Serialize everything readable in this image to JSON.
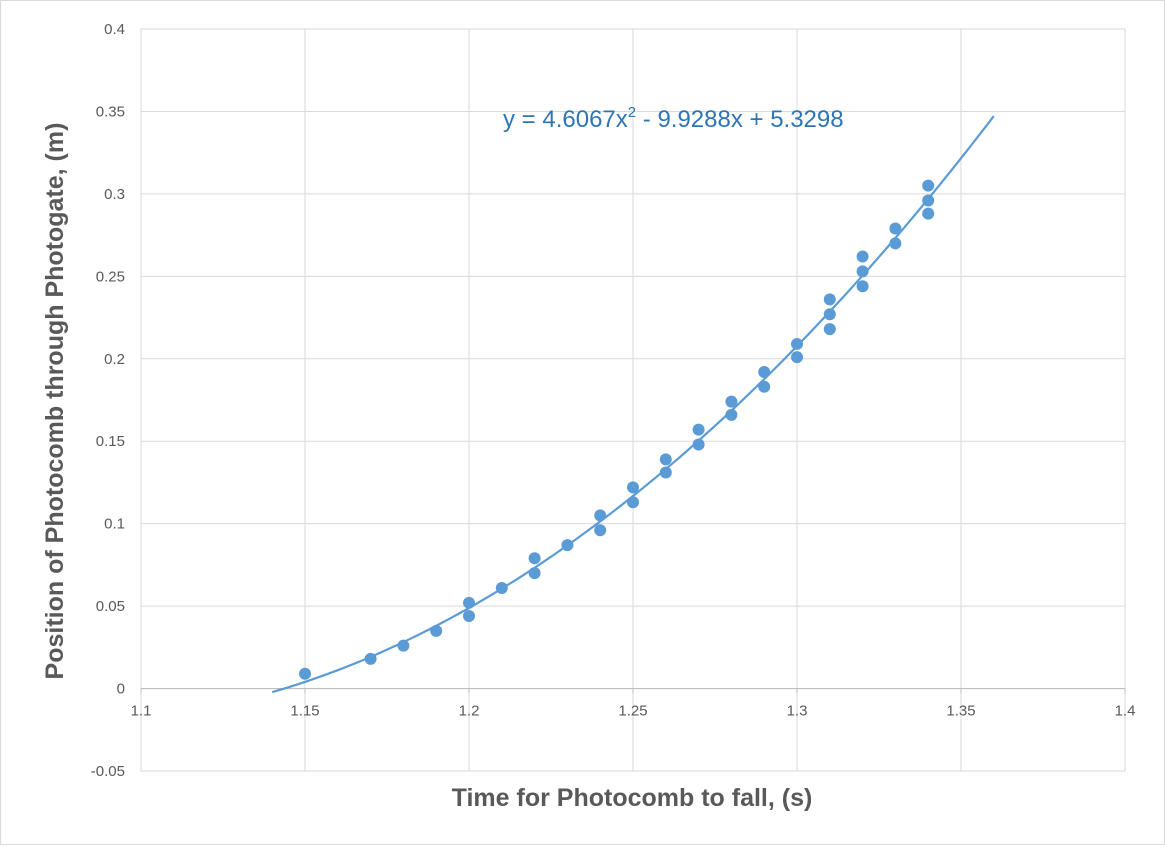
{
  "chart_data": {
    "type": "scatter",
    "title": "",
    "xlabel": "Time for Photocomb to fall, (s)",
    "ylabel": "Position of Photocomb through Photogate, (m)",
    "xlim": [
      1.1,
      1.4
    ],
    "ylim": [
      -0.05,
      0.4
    ],
    "x_ticks": [
      1.1,
      1.15,
      1.2,
      1.25,
      1.3,
      1.35,
      1.4
    ],
    "x_tick_labels": [
      "1.1",
      "1.15",
      "1.2",
      "1.25",
      "1.3",
      "1.35",
      "1.4"
    ],
    "y_ticks": [
      -0.05,
      0,
      0.05,
      0.1,
      0.15,
      0.2,
      0.25,
      0.3,
      0.35,
      0.4
    ],
    "y_tick_labels": [
      "-0.05",
      "0",
      "0.05",
      "0.1",
      "0.15",
      "0.2",
      "0.25",
      "0.3",
      "0.35",
      "0.4"
    ],
    "grid": true,
    "marker_color": "#5b9bd5",
    "series": [
      {
        "x": [
          1.15,
          1.17,
          1.18,
          1.19,
          1.2,
          1.2,
          1.21,
          1.22,
          1.22,
          1.23,
          1.24,
          1.24,
          1.25,
          1.25,
          1.26,
          1.26,
          1.27,
          1.27,
          1.28,
          1.28,
          1.29,
          1.29,
          1.3,
          1.3,
          1.31,
          1.31,
          1.31,
          1.32,
          1.32,
          1.32,
          1.33,
          1.33,
          1.34,
          1.34,
          1.34
        ],
        "y": [
          0.009,
          0.018,
          0.026,
          0.035,
          0.052,
          0.044,
          0.061,
          0.079,
          0.07,
          0.087,
          0.105,
          0.096,
          0.122,
          0.113,
          0.139,
          0.131,
          0.157,
          0.148,
          0.174,
          0.166,
          0.192,
          0.183,
          0.209,
          0.201,
          0.236,
          0.227,
          0.218,
          0.262,
          0.253,
          0.244,
          0.279,
          0.27,
          0.305,
          0.296,
          0.288
        ]
      }
    ],
    "trendline": {
      "type": "polynomial",
      "order": 2,
      "coefficients": [
        4.6067,
        -9.9288,
        5.3298
      ],
      "x_range": [
        1.14,
        1.36
      ],
      "color": "#5b9bd5",
      "equation_text": "y = 4.6067x",
      "equation_superscript": "2",
      "equation_rest": " - 9.9288x + 5.3298"
    }
  }
}
